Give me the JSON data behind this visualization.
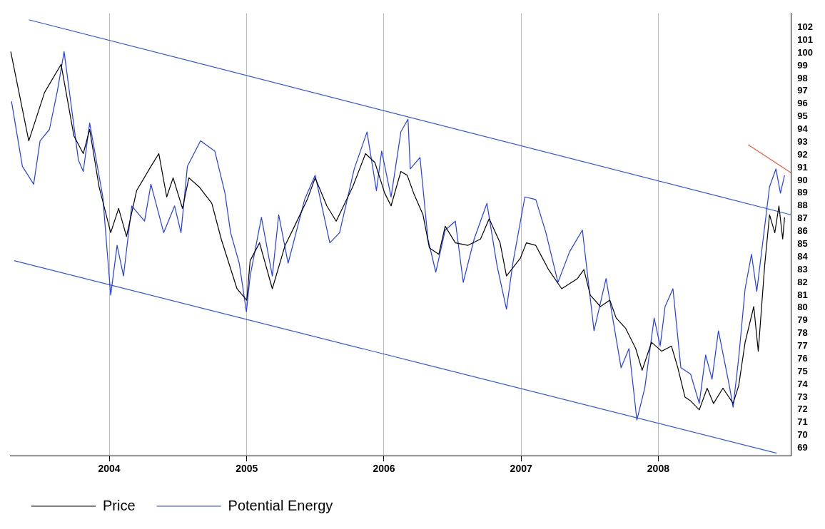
{
  "chart_data": {
    "type": "line",
    "xlim": [
      "2003-04-12",
      "2008-12-19"
    ],
    "xticks": [
      "2004",
      "2005",
      "2006",
      "2007",
      "2008"
    ],
    "ylim": [
      68.4,
      103.1
    ],
    "yticks": [
      69,
      70,
      71,
      72,
      73,
      74,
      75,
      76,
      77,
      78,
      79,
      80,
      81,
      82,
      83,
      84,
      85,
      86,
      87,
      88,
      89,
      90,
      91,
      92,
      93,
      94,
      95,
      96,
      97,
      98,
      99,
      100,
      101,
      102
    ],
    "grid": "x",
    "legend": "bottom",
    "tick_labels": true,
    "series": [
      {
        "name": "Price",
        "color": "#000000",
        "x": [
          "2003-04-14",
          "2003-06-01",
          "2003-07-13",
          "2003-08-26",
          "2003-09-29",
          "2003-10-24",
          "2003-11-10",
          "2003-12-05",
          "2004-01-05",
          "2004-01-26",
          "2004-02-16",
          "2004-03-14",
          "2004-04-21",
          "2004-05-12",
          "2004-06-02",
          "2004-06-19",
          "2004-07-14",
          "2004-07-31",
          "2004-08-27",
          "2004-09-30",
          "2004-10-25",
          "2004-12-06",
          "2005-01-01",
          "2005-01-10",
          "2005-02-04",
          "2005-03-10",
          "2005-04-13",
          "2005-05-08",
          "2005-06-11",
          "2005-07-02",
          "2005-08-02",
          "2005-08-27",
          "2005-10-10",
          "2005-11-13",
          "2005-12-08",
          "2006-01-03",
          "2006-01-20",
          "2006-02-15",
          "2006-03-04",
          "2006-03-21",
          "2006-04-15",
          "2006-05-02",
          "2006-05-27",
          "2006-06-13",
          "2006-07-10",
          "2006-08-12",
          "2006-09-15",
          "2006-10-08",
          "2006-11-06",
          "2006-11-23",
          "2006-12-30",
          "2007-01-15",
          "2007-02-09",
          "2007-03-15",
          "2007-04-19",
          "2007-05-31",
          "2007-06-17",
          "2007-07-04",
          "2007-07-31",
          "2007-08-25",
          "2007-09-11",
          "2007-10-06",
          "2007-11-02",
          "2007-11-19",
          "2007-12-14",
          "2008-01-10",
          "2008-02-05",
          "2008-02-22",
          "2008-03-12",
          "2008-03-27",
          "2008-04-19",
          "2008-05-10",
          "2008-05-27",
          "2008-06-21",
          "2008-07-18",
          "2008-08-02",
          "2008-08-19",
          "2008-09-11",
          "2008-09-23",
          "2008-10-10",
          "2008-10-23",
          "2008-11-06",
          "2008-11-17",
          "2008-11-27",
          "2008-12-02"
        ],
        "values": [
          100.1,
          93.1,
          96.9,
          99.1,
          93.5,
          92.1,
          94,
          89.5,
          85.9,
          87.8,
          85.6,
          89.2,
          91.1,
          92.1,
          88.7,
          90.2,
          87.8,
          90.2,
          89.5,
          88.2,
          85.4,
          81.5,
          80.6,
          83.7,
          85.1,
          81.5,
          84.9,
          86.4,
          88.5,
          90.2,
          88,
          86.8,
          89.5,
          92.1,
          91.4,
          89,
          88,
          90.7,
          90.4,
          89,
          87.3,
          84.7,
          84.2,
          86.4,
          85.1,
          84.9,
          85.4,
          87,
          85.1,
          82.5,
          83.9,
          85.1,
          84.9,
          83,
          81.5,
          82.3,
          83,
          81,
          80.1,
          80.6,
          79.2,
          78.4,
          76.8,
          75.1,
          77.3,
          76.6,
          77,
          75.3,
          73,
          72.7,
          72,
          73.7,
          72.5,
          73.7,
          72.5,
          73.9,
          77.3,
          80.1,
          76.6,
          83.3,
          87.3,
          85.9,
          88,
          85.4,
          87.1
        ]
      },
      {
        "name": "Potential Energy",
        "color": "#1f3cff",
        "x": [
          "2003-04-16",
          "2003-05-15",
          "2003-06-14",
          "2003-07-01",
          "2003-07-26",
          "2003-08-16",
          "2003-09-03",
          "2003-10-11",
          "2003-10-24",
          "2003-11-10",
          "2003-12-15",
          "2004-01-05",
          "2004-01-22",
          "2004-02-08",
          "2004-03-01",
          "2004-04-04",
          "2004-04-21",
          "2004-05-25",
          "2004-06-23",
          "2004-07-10",
          "2004-07-27",
          "2004-08-31",
          "2004-10-08",
          "2004-11-04",
          "2004-11-19",
          "2004-12-12",
          "2004-12-31",
          "2005-01-10",
          "2005-02-09",
          "2005-03-10",
          "2005-03-27",
          "2005-04-21",
          "2005-06-04",
          "2005-07-02",
          "2005-08-10",
          "2005-09-05",
          "2005-10-14",
          "2005-11-17",
          "2005-12-12",
          "2005-12-26",
          "2006-01-20",
          "2006-02-15",
          "2006-03-06",
          "2006-03-12",
          "2006-04-07",
          "2006-04-28",
          "2006-05-19",
          "2006-06-13",
          "2006-07-10",
          "2006-07-31",
          "2006-08-29",
          "2006-10-02",
          "2006-10-29",
          "2006-11-23",
          "2006-12-10",
          "2007-01-11",
          "2007-02-09",
          "2007-03-08",
          "2007-04-09",
          "2007-05-10",
          "2007-06-13",
          "2007-07-14",
          "2007-08-15",
          "2007-09-24",
          "2007-10-15",
          "2007-11-05",
          "2007-11-26",
          "2007-12-21",
          "2008-01-06",
          "2008-01-19",
          "2008-02-09",
          "2008-03-01",
          "2008-03-27",
          "2008-04-19",
          "2008-05-06",
          "2008-05-23",
          "2008-06-09",
          "2008-07-08",
          "2008-07-18",
          "2008-08-02",
          "2008-08-19",
          "2008-09-05",
          "2008-09-19",
          "2008-10-06",
          "2008-10-23",
          "2008-11-09",
          "2008-11-21",
          "2008-12-02"
        ],
        "values": [
          96.2,
          91.1,
          89.7,
          93.1,
          94,
          97,
          100.1,
          91.6,
          90.7,
          94.5,
          88.7,
          81,
          84.9,
          82.5,
          88,
          86.8,
          89.7,
          85.9,
          88,
          85.9,
          91.1,
          93.1,
          92.3,
          89,
          85.9,
          83.5,
          79.7,
          82.5,
          87.1,
          82.5,
          87.3,
          83.5,
          88.5,
          90.4,
          85.1,
          85.9,
          90.9,
          93.8,
          89.2,
          92.3,
          88.7,
          93.8,
          94.8,
          90.9,
          91.8,
          85.4,
          82.8,
          86.1,
          86.8,
          82,
          85.4,
          88.2,
          83.3,
          79.9,
          83.5,
          88.7,
          88.5,
          85.9,
          82,
          84.4,
          86.1,
          78.2,
          82.3,
          75.3,
          76.8,
          71.2,
          73.7,
          79.2,
          77,
          80.1,
          81.5,
          75.3,
          74.8,
          72.5,
          76.3,
          74.4,
          78.2,
          73.9,
          72.2,
          76.1,
          81.5,
          84.2,
          81.3,
          85.4,
          89.5,
          90.9,
          89,
          90.4
        ]
      },
      {
        "type": "line",
        "color": "#2e55ee",
        "x": [
          "2003-06-01",
          "2008-12-19"
        ],
        "values": [
          102.6,
          87.3
        ]
      },
      {
        "type": "line",
        "color": "#2e55ee",
        "x": [
          "2003-04-23",
          "2008-11-11"
        ],
        "values": [
          83.7,
          68.6
        ]
      },
      {
        "type": "line",
        "color": "#ff5533",
        "x": [
          "2008-08-27",
          "2008-12-19"
        ],
        "values": [
          92.8,
          90.6
        ]
      }
    ]
  }
}
